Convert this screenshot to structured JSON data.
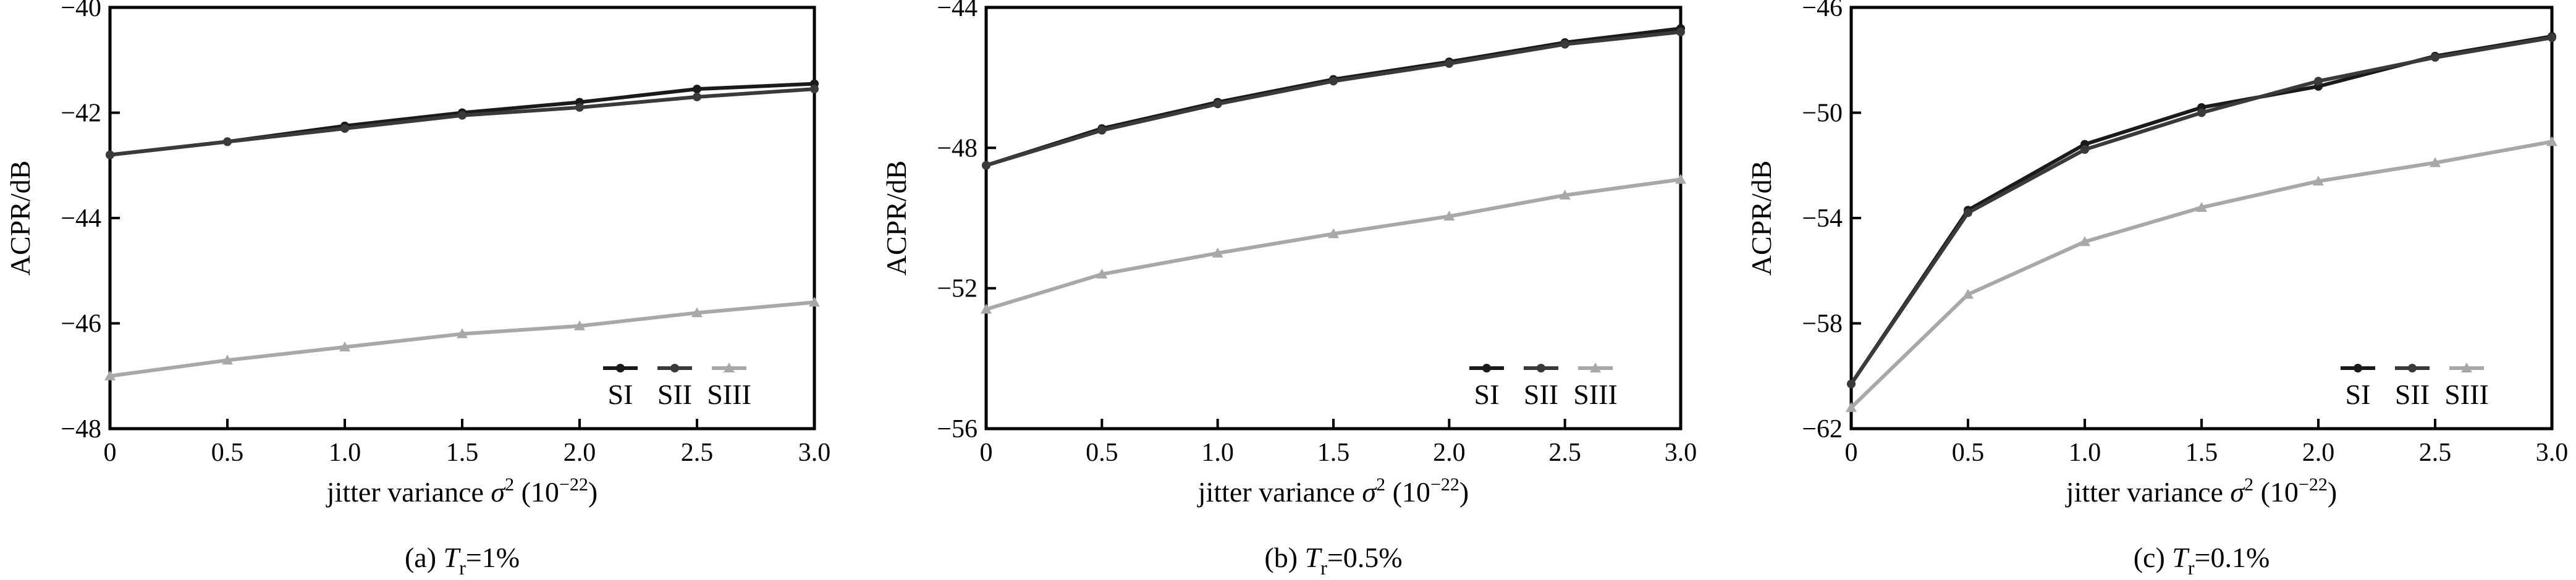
{
  "figure": {
    "xlabel_prefix": "jitter variance ",
    "xlabel_sigma": "σ",
    "xlabel_sup": "2",
    "xlabel_unit_open": " (10",
    "xlabel_unit_sup": "−22",
    "xlabel_unit_close": ")",
    "ylabel": "ACPR/dB",
    "legend_labels": [
      "SI",
      "SII",
      "SIII"
    ]
  },
  "colors": {
    "SI": "#1a1a1a",
    "SII": "#3a3a3a",
    "SIII": "#a8a8a8",
    "axis": "#000000"
  },
  "chart_data": [
    {
      "type": "line",
      "caption": {
        "prefix": "(a) ",
        "var": "T",
        "sub": "r",
        "suffix": "=1%"
      },
      "xlabel": "jitter variance σ2 (10−22)",
      "ylabel": "ACPR/dB",
      "xlim": [
        0,
        3.0
      ],
      "ylim": [
        -48,
        -40
      ],
      "xticks": [
        "0",
        "0.5",
        "1.0",
        "1.5",
        "2.0",
        "2.5",
        "3.0"
      ],
      "yticks": [
        "−48",
        "−46",
        "−44",
        "−42",
        "−40"
      ],
      "x": [
        0,
        0.5,
        1.0,
        1.5,
        2.0,
        2.5,
        3.0
      ],
      "legend_position": "bottom-right",
      "series": [
        {
          "name": "SI",
          "values": [
            -42.8,
            -42.55,
            -42.25,
            -42.0,
            -41.8,
            -41.55,
            -41.45
          ]
        },
        {
          "name": "SII",
          "values": [
            -42.8,
            -42.55,
            -42.3,
            -42.05,
            -41.9,
            -41.7,
            -41.55
          ]
        },
        {
          "name": "SIII",
          "values": [
            -47.0,
            -46.7,
            -46.45,
            -46.2,
            -46.05,
            -45.8,
            -45.6
          ]
        }
      ]
    },
    {
      "type": "line",
      "caption": {
        "prefix": "(b) ",
        "var": "T",
        "sub": "r",
        "suffix": "=0.5%"
      },
      "xlabel": "jitter variance σ2 (10−22)",
      "ylabel": "ACPR/dB",
      "xlim": [
        0,
        3.0
      ],
      "ylim": [
        -56,
        -44
      ],
      "xticks": [
        "0",
        "0.5",
        "1.0",
        "1.5",
        "2.0",
        "2.5",
        "3.0"
      ],
      "yticks": [
        "−56",
        "−52",
        "−48",
        "−44"
      ],
      "x": [
        0,
        0.5,
        1.0,
        1.5,
        2.0,
        2.5,
        3.0
      ],
      "legend_position": "bottom-right",
      "series": [
        {
          "name": "SI",
          "values": [
            -48.5,
            -47.45,
            -46.7,
            -46.05,
            -45.55,
            -45.0,
            -44.6
          ]
        },
        {
          "name": "SII",
          "values": [
            -48.5,
            -47.5,
            -46.75,
            -46.1,
            -45.6,
            -45.05,
            -44.7
          ]
        },
        {
          "name": "SIII",
          "values": [
            -52.6,
            -51.6,
            -51.0,
            -50.45,
            -49.95,
            -49.35,
            -48.9
          ]
        }
      ]
    },
    {
      "type": "line",
      "caption": {
        "prefix": "(c) ",
        "var": "T",
        "sub": "r",
        "suffix": "=0.1%"
      },
      "xlabel": "jitter variance σ2 (10−22)",
      "ylabel": "ACPR/dB",
      "xlim": [
        0,
        3.0
      ],
      "ylim": [
        -62,
        -46
      ],
      "xticks": [
        "0",
        "0.5",
        "1.0",
        "1.5",
        "2.0",
        "2.5",
        "3.0"
      ],
      "yticks": [
        "−62",
        "−58",
        "−54",
        "−50",
        "−46"
      ],
      "x": [
        0,
        0.5,
        1.0,
        1.5,
        2.0,
        2.5,
        3.0
      ],
      "legend_position": "bottom-right",
      "series": [
        {
          "name": "SI",
          "values": [
            -60.3,
            -53.7,
            -51.2,
            -49.8,
            -49.0,
            -47.85,
            -47.1
          ]
        },
        {
          "name": "SII",
          "values": [
            -60.3,
            -53.8,
            -51.4,
            -50.0,
            -48.8,
            -47.9,
            -47.15
          ]
        },
        {
          "name": "SIII",
          "values": [
            -61.2,
            -56.9,
            -54.9,
            -53.6,
            -52.6,
            -51.9,
            -51.1
          ]
        }
      ]
    }
  ]
}
